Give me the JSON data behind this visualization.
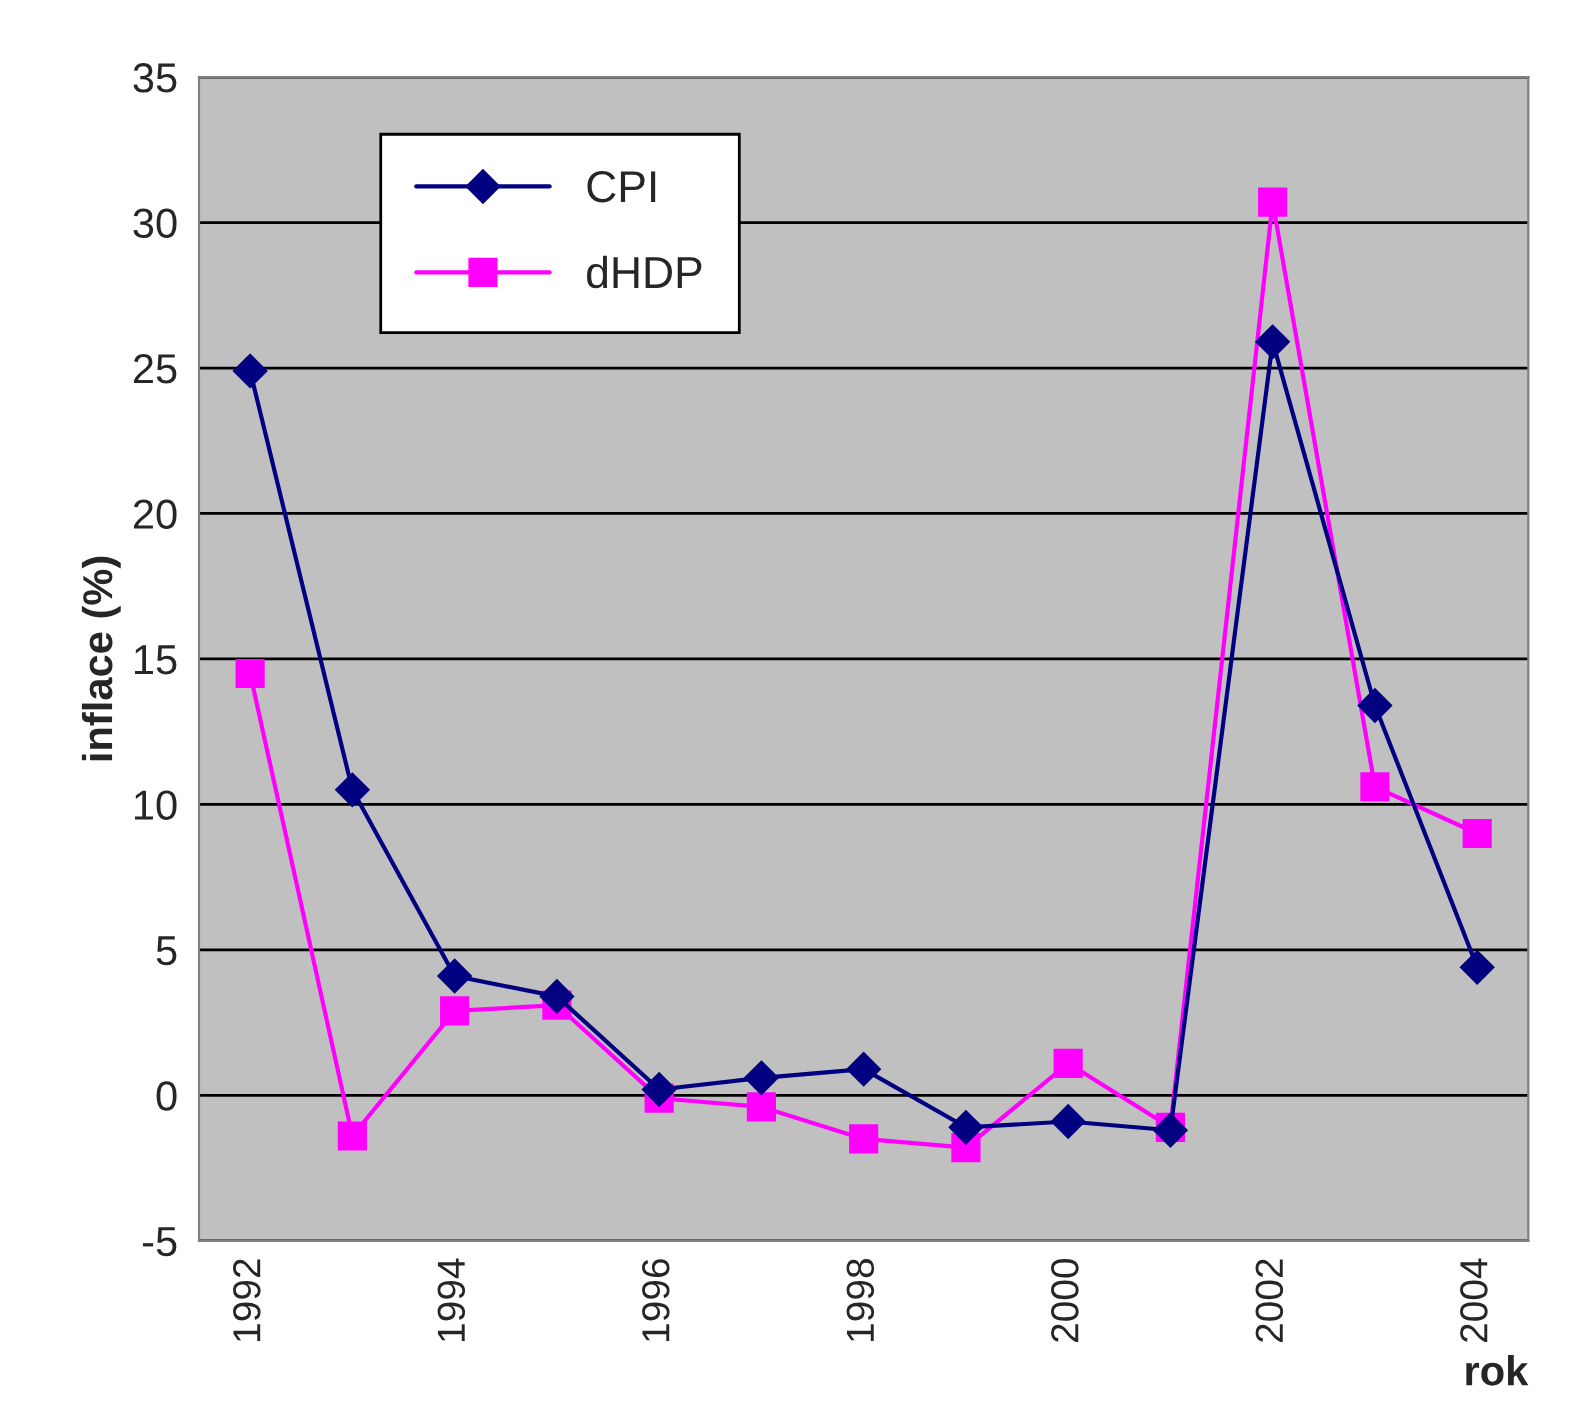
{
  "chart_data": {
    "type": "line",
    "xlabel": "rok",
    "ylabel": "inflace (%)",
    "categories": [
      "1992",
      null,
      "1994",
      null,
      "1996",
      null,
      "1998",
      null,
      "2000",
      null,
      "2002",
      null,
      "2004"
    ],
    "series": [
      {
        "name": "CPI",
        "color": "#000080",
        "marker": "diamond",
        "values": [
          24.9,
          10.5,
          4.1,
          3.4,
          0.2,
          0.6,
          0.9,
          -1.1,
          -0.9,
          -1.2,
          25.9,
          13.4,
          4.4
        ]
      },
      {
        "name": "dHDP",
        "color": "#ff00ff",
        "marker": "square",
        "values": [
          14.5,
          -1.4,
          2.9,
          3.1,
          -0.1,
          -0.4,
          -1.5,
          -1.8,
          1.1,
          -1.1,
          30.7,
          10.6,
          9.0
        ]
      }
    ],
    "ylim": [
      -5,
      35
    ],
    "yticks": [
      -5,
      0,
      5,
      10,
      15,
      20,
      25,
      30,
      35
    ],
    "grid": "y",
    "legend": "top left",
    "line_style": "solid"
  }
}
